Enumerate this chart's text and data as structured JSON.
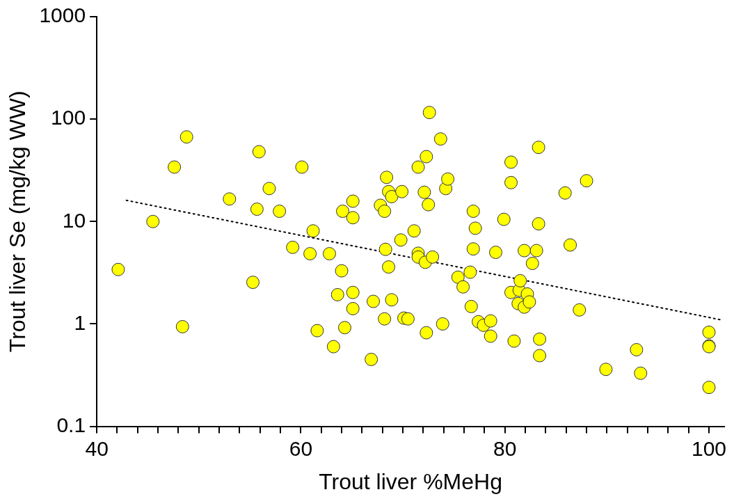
{
  "chart_data": {
    "type": "scatter",
    "xlabel": "Trout liver %MeHg",
    "ylabel": "Trout liver Se (mg/kg WW)",
    "log": "y",
    "grid": false,
    "legend": false,
    "marker": "circle",
    "xlim": [
      40,
      101.5
    ],
    "xticks": [
      40,
      {
        "value": 42,
        "label": null
      },
      {
        "value": 44,
        "label": null
      },
      {
        "value": 46,
        "label": null
      },
      {
        "value": 48,
        "label": null
      },
      {
        "value": 50,
        "label": null
      },
      {
        "value": 52,
        "label": null
      },
      {
        "value": 54,
        "label": null
      },
      {
        "value": 56,
        "label": null
      },
      {
        "value": 58,
        "label": null
      },
      60,
      {
        "value": 62,
        "label": null
      },
      {
        "value": 64,
        "label": null
      },
      {
        "value": 66,
        "label": null
      },
      {
        "value": 68,
        "label": null
      },
      {
        "value": 70,
        "label": null
      },
      {
        "value": 72,
        "label": null
      },
      {
        "value": 74,
        "label": null
      },
      {
        "value": 76,
        "label": null
      },
      {
        "value": 78,
        "label": null
      },
      80,
      {
        "value": 82,
        "label": null
      },
      {
        "value": 84,
        "label": null
      },
      {
        "value": 86,
        "label": null
      },
      {
        "value": 88,
        "label": null
      },
      {
        "value": 90,
        "label": null
      },
      {
        "value": 92,
        "label": null
      },
      {
        "value": 94,
        "label": null
      },
      {
        "value": 96,
        "label": null
      },
      {
        "value": 98,
        "label": null
      },
      100
    ],
    "ylim": [
      0.1,
      1000
    ],
    "yticks": [
      0.1,
      1,
      10,
      100,
      1000
    ],
    "series": [
      {
        "color": "#ffff00",
        "x": [
          42.1,
          45.5,
          47.6,
          48.4,
          48.8,
          53.0,
          55.3,
          55.7,
          55.9,
          56.9,
          57.9,
          59.2,
          60.1,
          60.9,
          61.2,
          61.6,
          62.8,
          63.2,
          63.6,
          64.0,
          64.1,
          64.3,
          65.1,
          65.1,
          65.1,
          65.1,
          66.9,
          67.1,
          67.8,
          68.2,
          68.3,
          68.2,
          68.4,
          68.6,
          68.6,
          68.9,
          68.9,
          69.9,
          69.8,
          70.1,
          70.5,
          71.1,
          71.5,
          71.5,
          71.5,
          72.1,
          72.2,
          72.3,
          72.3,
          72.5,
          72.6,
          72.9,
          73.7,
          73.9,
          74.2,
          74.4,
          75.4,
          75.9,
          76.6,
          76.7,
          76.9,
          76.9,
          77.1,
          77.4,
          77.9,
          78.6,
          78.6,
          79.1,
          79.9,
          80.6,
          80.6,
          80.6,
          80.9,
          81.3,
          81.4,
          81.5,
          81.9,
          81.9,
          82.2,
          82.4,
          82.7,
          83.1,
          83.3,
          83.3,
          83.4,
          83.4,
          85.9,
          86.4,
          87.3,
          88.0,
          89.9,
          92.9,
          93.3,
          100,
          100,
          100,
          100
        ],
        "values": [
          3.4,
          10,
          34,
          0.94,
          67,
          16.6,
          2.55,
          13.2,
          48,
          21,
          12.6,
          5.6,
          34,
          4.85,
          8.1,
          0.86,
          4.85,
          0.6,
          1.93,
          3.3,
          12.6,
          0.92,
          10.9,
          15.8,
          1.41,
          2.03,
          0.45,
          1.66,
          14.4,
          12.6,
          5.35,
          1.12,
          27,
          19.6,
          3.6,
          17.5,
          1.72,
          19.6,
          6.6,
          1.14,
          1.12,
          8.1,
          34,
          4.9,
          4.5,
          19.3,
          4.0,
          43,
          0.82,
          14.6,
          116,
          4.5,
          64,
          1.0,
          21,
          26,
          2.86,
          2.3,
          3.2,
          1.48,
          12.6,
          5.4,
          8.6,
          1.05,
          0.97,
          0.76,
          1.07,
          5.0,
          10.5,
          24,
          38,
          2.03,
          0.68,
          1.58,
          2.13,
          2.64,
          1.46,
          5.2,
          1.96,
          1.64,
          3.9,
          5.2,
          9.5,
          53,
          0.71,
          0.49,
          19,
          5.9,
          1.37,
          25,
          0.36,
          0.56,
          0.33,
          0.83,
          0.61,
          0.6,
          0.24
        ]
      },
      {
        "type": "line",
        "color": "#000000",
        "marker": "none",
        "line_style": "dotted",
        "x": [
          42.9,
          101.1
        ],
        "values": [
          16.1,
          1.1
        ]
      }
    ]
  }
}
